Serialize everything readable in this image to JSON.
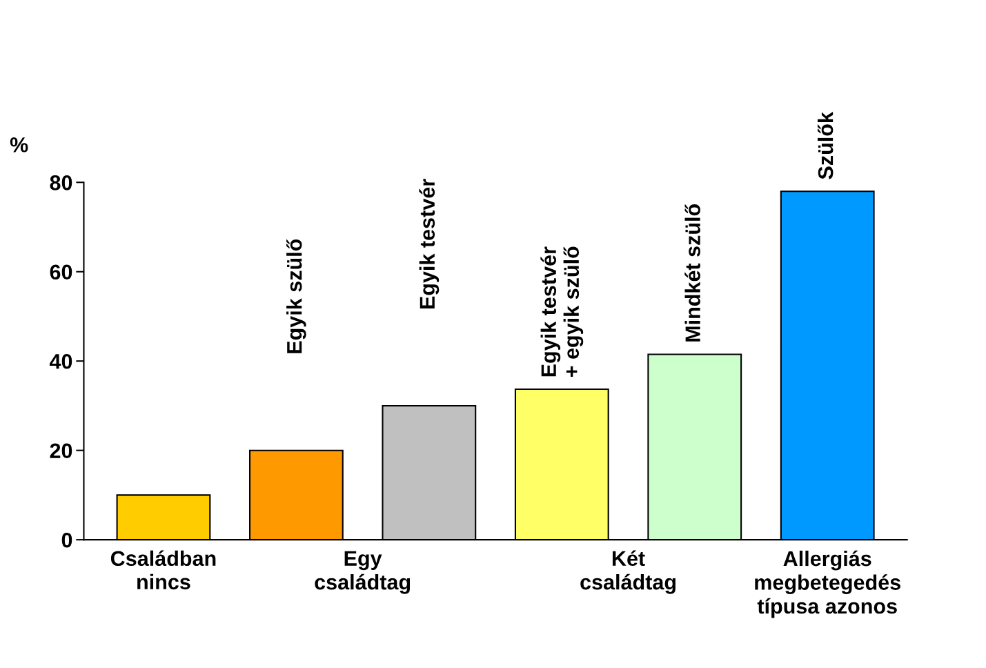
{
  "chart_data": {
    "type": "bar",
    "categories": [
      null,
      "Egyik szülő",
      "Egyik testvér",
      "Egyik testvér\n+ egyik szülő",
      "Mindkét szülő",
      "Szülők"
    ],
    "values": [
      10,
      20,
      30,
      33.7,
      41.5,
      78
    ],
    "colors": [
      "#ffcc00",
      "#ff9900",
      "#c0c0c0",
      "#ffff66",
      "#ccffcc",
      "#0099ff"
    ],
    "ylabel": "%",
    "ylim": [
      0,
      80
    ],
    "yticks": [
      0,
      20,
      40,
      60,
      80
    ],
    "annotations": [
      "Családban\nnincs",
      "Egy\ncsaládtag",
      "Két\ncsaládtag",
      "Allergiás\nmegbetegedés\ntípusa azonos"
    ],
    "grid": false,
    "legend": false
  }
}
